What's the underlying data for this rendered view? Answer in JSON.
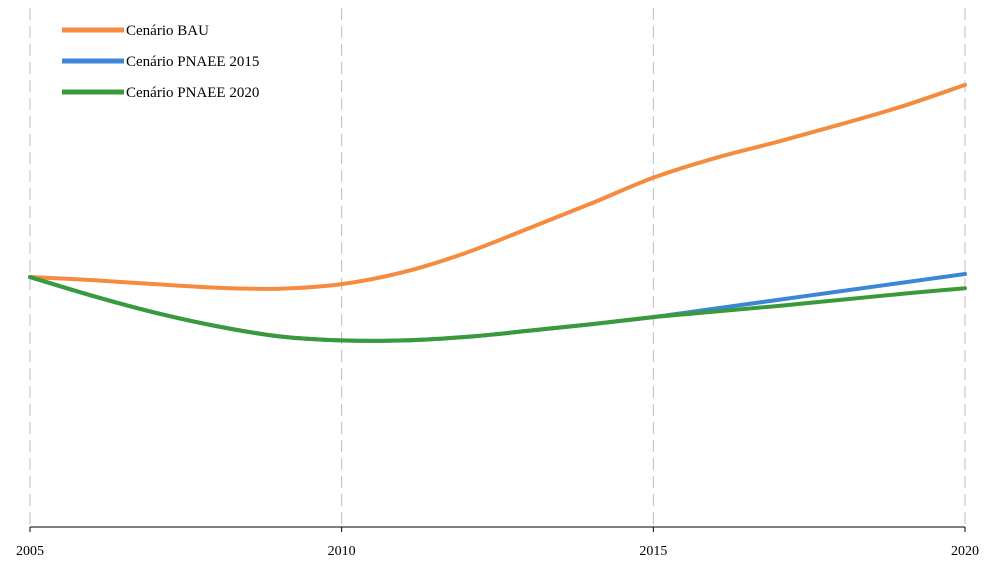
{
  "chart_data": {
    "type": "line",
    "title": "",
    "xlabel": "",
    "ylabel": "",
    "x": [
      2005,
      2006,
      2007,
      2008,
      2009,
      2010,
      2011,
      2012,
      2013,
      2014,
      2015,
      2016,
      2017,
      2018,
      2019,
      2020
    ],
    "x_ticks": [
      "2005",
      "2010",
      "2015",
      "2020"
    ],
    "xlim": [
      2005,
      2020
    ],
    "ylim": [
      0,
      100
    ],
    "grid": "vertical dashed lines at labeled years",
    "legend_position": "top-left",
    "series": [
      {
        "name": "Cenário BAU",
        "color": "#f58b3f",
        "values": [
          49.3,
          48.7,
          47.9,
          47.2,
          47.0,
          47.9,
          50.3,
          54.1,
          58.9,
          63.8,
          68.9,
          72.8,
          76.0,
          79.4,
          83.0,
          87.2
        ]
      },
      {
        "name": "Cenário PNAEE 2015",
        "color": "#3b86d6",
        "values": [
          49.3,
          45.6,
          42.3,
          39.6,
          37.6,
          36.8,
          36.8,
          37.5,
          38.7,
          40.0,
          41.4,
          43.1,
          44.8,
          46.5,
          48.2,
          49.9
        ]
      },
      {
        "name": "Cenário PNAEE 2020",
        "color": "#3a9a3a",
        "values": [
          49.3,
          45.6,
          42.3,
          39.6,
          37.6,
          36.8,
          36.8,
          37.5,
          38.7,
          40.0,
          41.4,
          42.5,
          43.6,
          44.8,
          46.0,
          47.1
        ]
      }
    ]
  }
}
